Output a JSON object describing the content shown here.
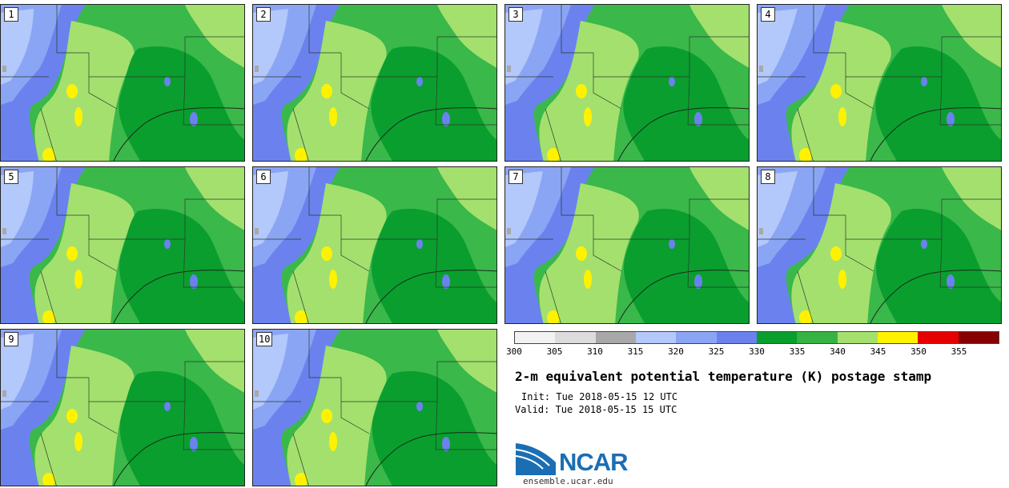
{
  "panels": [
    "1",
    "2",
    "3",
    "4",
    "5",
    "6",
    "7",
    "8",
    "9",
    "10"
  ],
  "colorbar": {
    "levels": [
      "300",
      "305",
      "310",
      "315",
      "320",
      "325",
      "330",
      "335",
      "340",
      "345",
      "350",
      "355"
    ],
    "colors": [
      "#f2f2f2",
      "#dcdcdc",
      "#a8a8a8",
      "#b3c8fb",
      "#8ba5f5",
      "#6b82ee",
      "#0a9e2e",
      "#36b342",
      "#a4e06e",
      "#fff200",
      "#e60000",
      "#880000"
    ]
  },
  "title": "2-m equivalent potential temperature (K) postage stamp",
  "init": "Init: Tue 2018-05-15 12 UTC",
  "valid": "Valid: Tue 2018-05-15 15 UTC",
  "logo_text": "NCAR",
  "site": "ensemble.ucar.edu",
  "map_colors": {
    "cold": "#b3c8fb",
    "cool": "#8ba5f5",
    "cooler": "#6b82ee",
    "base": "#3ab84a",
    "dark": "#0a9e2e",
    "light": "#a4e06e",
    "yellow": "#fff200",
    "gray": "#a8a8a8"
  }
}
